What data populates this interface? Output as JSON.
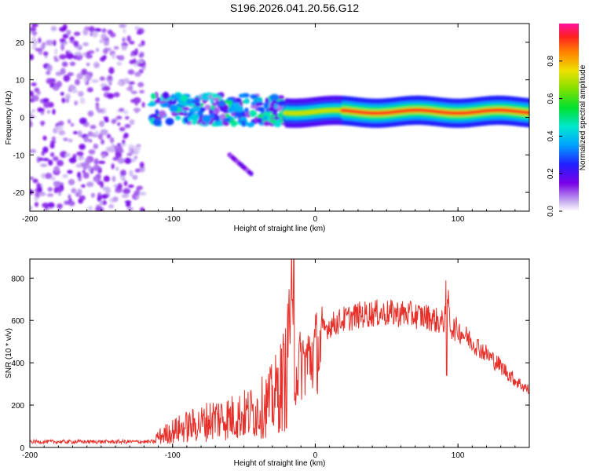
{
  "title": "S196.2026.041.20.56.G12",
  "chart_data": [
    {
      "type": "heatmap",
      "name": "spectrogram",
      "xlabel": "Height of straight line (km)",
      "ylabel": "Frequency (Hz)",
      "xlim": [
        -200,
        150
      ],
      "ylim": [
        -25,
        25
      ],
      "xticks": [
        -200,
        -100,
        0,
        100
      ],
      "yticks": [
        -20,
        -10,
        0,
        10,
        20
      ],
      "colorbar": {
        "label": "Normalized spectral amplitude",
        "range": [
          0,
          1
        ],
        "ticks": [
          0.0,
          0.2,
          0.4,
          0.6,
          0.8
        ]
      },
      "features": [
        {
          "x_range": [
            -200,
            -120
          ],
          "freq_range": [
            -25,
            25
          ],
          "description": "noise",
          "amplitude": 0.15
        },
        {
          "x_range": [
            -115,
            -20
          ],
          "freq_center": 2,
          "freq_spread": 4,
          "amplitude": 0.45
        },
        {
          "x_range": [
            -60,
            -45
          ],
          "freq_from": -10,
          "freq_to": -15,
          "amplitude": 0.15
        },
        {
          "x_range": [
            -20,
            150
          ],
          "freq_center": 1.5,
          "freq_spread": 1,
          "amplitude": 0.9
        }
      ]
    },
    {
      "type": "line",
      "name": "snr",
      "xlabel": "Height of straight line (km)",
      "ylabel": "SNR (10 * v/v)",
      "xlim": [
        -200,
        150
      ],
      "ylim": [
        0,
        890
      ],
      "xticks": [
        -200,
        -100,
        0,
        100
      ],
      "yticks": [
        0,
        200,
        400,
        600,
        800
      ],
      "series_color": "#e8302a",
      "x": [
        -200,
        -180,
        -160,
        -140,
        -120,
        -110,
        -100,
        -90,
        -80,
        -70,
        -60,
        -50,
        -40,
        -30,
        -25,
        -20,
        -17,
        -15,
        -10,
        -5,
        0,
        10,
        20,
        30,
        40,
        50,
        60,
        70,
        80,
        90,
        92,
        95,
        100,
        110,
        120,
        130,
        140,
        150
      ],
      "y": [
        25,
        25,
        25,
        25,
        25,
        70,
        110,
        140,
        160,
        200,
        200,
        220,
        250,
        320,
        400,
        500,
        890,
        400,
        480,
        500,
        550,
        600,
        630,
        650,
        660,
        660,
        660,
        650,
        640,
        610,
        800,
        590,
        580,
        520,
        460,
        400,
        330,
        280
      ]
    }
  ]
}
